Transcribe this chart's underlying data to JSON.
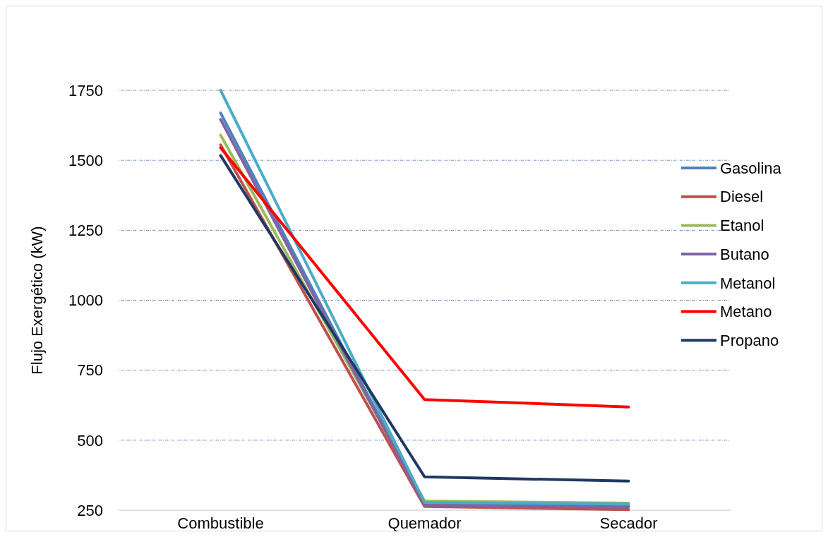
{
  "chart_data": {
    "type": "line",
    "ylabel": "Flujo Exergético (kW)",
    "categories": [
      "Combustible",
      "Quemador",
      "Secador"
    ],
    "ylim": [
      250,
      1750
    ],
    "yticks": [
      250,
      500,
      750,
      1000,
      1250,
      1500,
      1750
    ],
    "grid": "y",
    "legend": "right",
    "marker": "none",
    "line_style": "solid",
    "series": [
      {
        "name": "Gasolina",
        "color": "#4f81bd",
        "values": [
          1669,
          273,
          265
        ]
      },
      {
        "name": "Diesel",
        "color": "#c0504d",
        "values": [
          1555,
          263,
          252
        ]
      },
      {
        "name": "Etanol",
        "color": "#9bbb59",
        "values": [
          1590,
          283,
          275
        ]
      },
      {
        "name": "Butano",
        "color": "#8064a2",
        "values": [
          1646,
          268,
          260
        ]
      },
      {
        "name": "Metanol",
        "color": "#4bacc6",
        "values": [
          1750,
          278,
          272
        ]
      },
      {
        "name": "Metano",
        "color": "#ff0000",
        "values": [
          1545,
          645,
          619
        ]
      },
      {
        "name": "Propano",
        "color": "#1f3864",
        "values": [
          1517,
          369,
          354
        ]
      }
    ]
  }
}
